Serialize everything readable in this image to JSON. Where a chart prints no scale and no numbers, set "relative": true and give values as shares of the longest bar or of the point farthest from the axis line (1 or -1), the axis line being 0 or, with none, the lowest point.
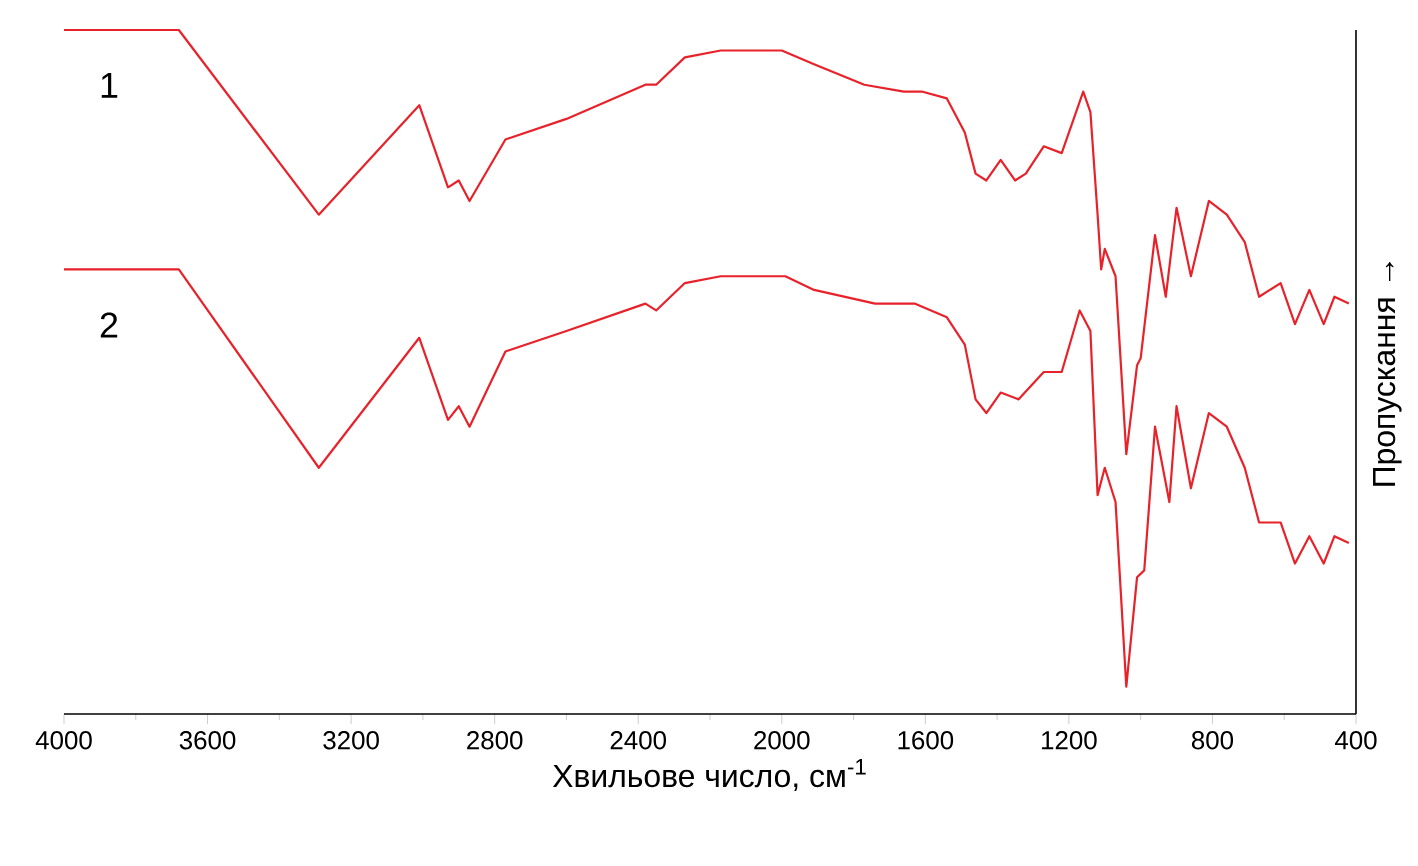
{
  "chart_data": {
    "type": "line",
    "relative": true,
    "xlabel": "Хвильове число, см$^{-1}$",
    "ylabel": "Пропускання →",
    "xlim": [
      4000,
      400
    ],
    "xticks": [
      4000,
      3600,
      3200,
      2800,
      2400,
      2000,
      1600,
      1200,
      800,
      400
    ],
    "legend": false,
    "grid": false,
    "marker": "none",
    "line_style": "solid",
    "series": [
      {
        "name": "1",
        "color": "#e8222a",
        "x": [
          4000,
          3680,
          3290,
          3010,
          2930,
          2900,
          2870,
          2770,
          2600,
          2380,
          2350,
          2270,
          2170,
          2000,
          1910,
          1770,
          1660,
          1610,
          1540,
          1490,
          1460,
          1430,
          1390,
          1350,
          1320,
          1270,
          1220,
          1200,
          1160,
          1140,
          1120,
          1110,
          1100,
          1070,
          1040,
          1010,
          1000,
          960,
          930,
          900,
          860,
          810,
          760,
          710,
          670,
          610,
          570,
          530,
          490,
          460,
          420
        ],
        "values": [
          1.0,
          1.0,
          0.73,
          0.89,
          0.77,
          0.78,
          0.75,
          0.84,
          0.87,
          0.92,
          0.92,
          0.96,
          0.97,
          0.97,
          0.95,
          0.92,
          0.91,
          0.91,
          0.9,
          0.85,
          0.79,
          0.78,
          0.81,
          0.78,
          0.79,
          0.83,
          0.82,
          0.85,
          0.91,
          0.88,
          0.73,
          0.65,
          0.68,
          0.64,
          0.38,
          0.51,
          0.52,
          0.7,
          0.61,
          0.74,
          0.64,
          0.75,
          0.73,
          0.69,
          0.61,
          0.63,
          0.57,
          0.62,
          0.57,
          0.61,
          0.6
        ]
      },
      {
        "name": "2",
        "color": "#e8222a",
        "x": [
          4000,
          3680,
          3290,
          3010,
          2930,
          2900,
          2870,
          2770,
          2600,
          2380,
          2350,
          2270,
          2170,
          1990,
          1910,
          1740,
          1630,
          1540,
          1490,
          1460,
          1430,
          1390,
          1340,
          1270,
          1220,
          1170,
          1140,
          1120,
          1100,
          1070,
          1040,
          1010,
          990,
          960,
          920,
          900,
          860,
          810,
          760,
          710,
          670,
          610,
          570,
          530,
          490,
          460,
          420
        ],
        "values": [
          0.65,
          0.65,
          0.36,
          0.55,
          0.43,
          0.45,
          0.42,
          0.53,
          0.56,
          0.6,
          0.59,
          0.63,
          0.64,
          0.64,
          0.62,
          0.6,
          0.6,
          0.58,
          0.54,
          0.46,
          0.44,
          0.47,
          0.46,
          0.5,
          0.5,
          0.59,
          0.56,
          0.32,
          0.36,
          0.31,
          0.04,
          0.2,
          0.21,
          0.42,
          0.31,
          0.45,
          0.33,
          0.44,
          0.42,
          0.36,
          0.28,
          0.28,
          0.22,
          0.26,
          0.22,
          0.26,
          0.25
        ]
      }
    ]
  }
}
